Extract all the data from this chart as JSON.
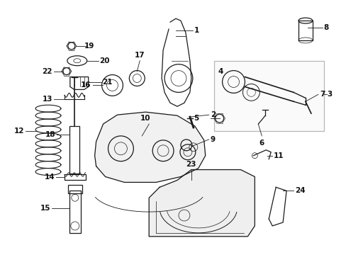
{
  "bg_color": "#ffffff",
  "fig_width": 4.89,
  "fig_height": 3.6,
  "dpi": 100,
  "line_color": "#1a1a1a",
  "text_color": "#111111",
  "label_fontsize": 7.5
}
